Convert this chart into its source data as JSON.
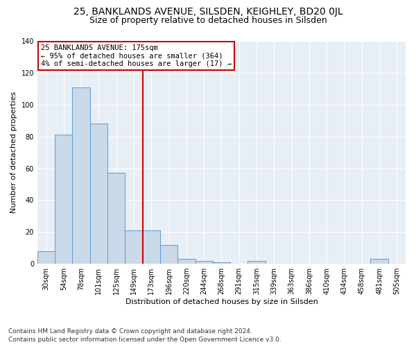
{
  "title": "25, BANKLANDS AVENUE, SILSDEN, KEIGHLEY, BD20 0JL",
  "subtitle": "Size of property relative to detached houses in Silsden",
  "xlabel": "Distribution of detached houses by size in Silsden",
  "ylabel": "Number of detached properties",
  "categories": [
    "30sqm",
    "54sqm",
    "78sqm",
    "101sqm",
    "125sqm",
    "149sqm",
    "173sqm",
    "196sqm",
    "220sqm",
    "244sqm",
    "268sqm",
    "291sqm",
    "315sqm",
    "339sqm",
    "363sqm",
    "386sqm",
    "410sqm",
    "434sqm",
    "458sqm",
    "481sqm",
    "505sqm"
  ],
  "values": [
    8,
    81,
    111,
    88,
    57,
    21,
    21,
    12,
    3,
    2,
    1,
    0,
    2,
    0,
    0,
    0,
    0,
    0,
    0,
    3,
    0
  ],
  "bar_color": "#c9d9e8",
  "bar_edge_color": "#5b9bd5",
  "vline_index": 6,
  "vline_color": "#cc0000",
  "annotation_lines": [
    "25 BANKLANDS AVENUE: 175sqm",
    "← 95% of detached houses are smaller (364)",
    "4% of semi-detached houses are larger (17) →"
  ],
  "annotation_box_color": "#ffffff",
  "annotation_border_color": "#cc0000",
  "ylim": [
    0,
    140
  ],
  "yticks": [
    0,
    20,
    40,
    60,
    80,
    100,
    120,
    140
  ],
  "bg_color": "#e8eef5",
  "footnote1": "Contains HM Land Registry data © Crown copyright and database right 2024.",
  "footnote2": "Contains public sector information licensed under the Open Government Licence v3.0.",
  "title_fontsize": 10,
  "subtitle_fontsize": 9,
  "annotation_fontsize": 7.5,
  "axis_label_fontsize": 8,
  "tick_fontsize": 7,
  "footnote_fontsize": 6.5
}
